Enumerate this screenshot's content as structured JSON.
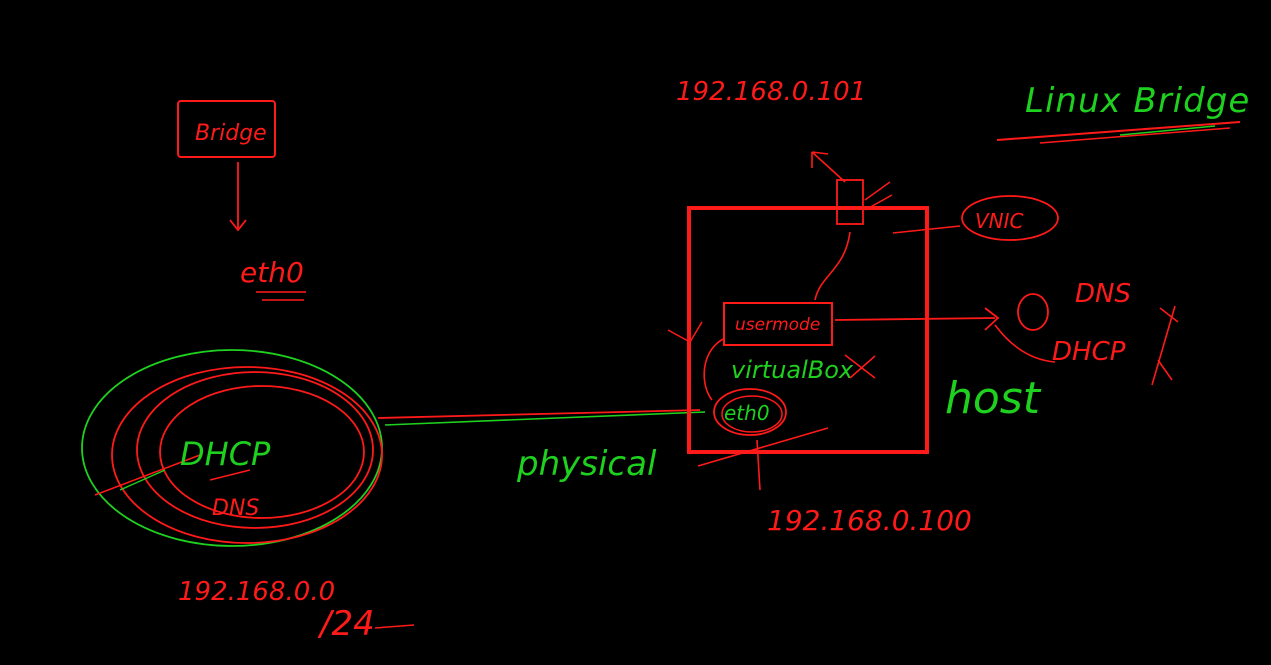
{
  "colors": {
    "background": "#000000",
    "red": "#ff1a1a",
    "green": "#1fd11f"
  },
  "labels": {
    "title": "Linux Bridge",
    "bridge_box": "Bridge",
    "eth0_left": "eth0",
    "ip_vm": "192.168.0.101",
    "vnic": "VNIC",
    "usermode": "usermode",
    "virtual_box": "virtualBox",
    "eth0_host": "eth0",
    "host": "host",
    "dns_right": "DNS",
    "dhcp_right": "DHCP",
    "dhcp_left": "DHCP",
    "dns_left": "DNS",
    "physical": "physical",
    "ip_host": "192.168.0.100",
    "network": "192.168.0.0",
    "mask": "/24"
  }
}
